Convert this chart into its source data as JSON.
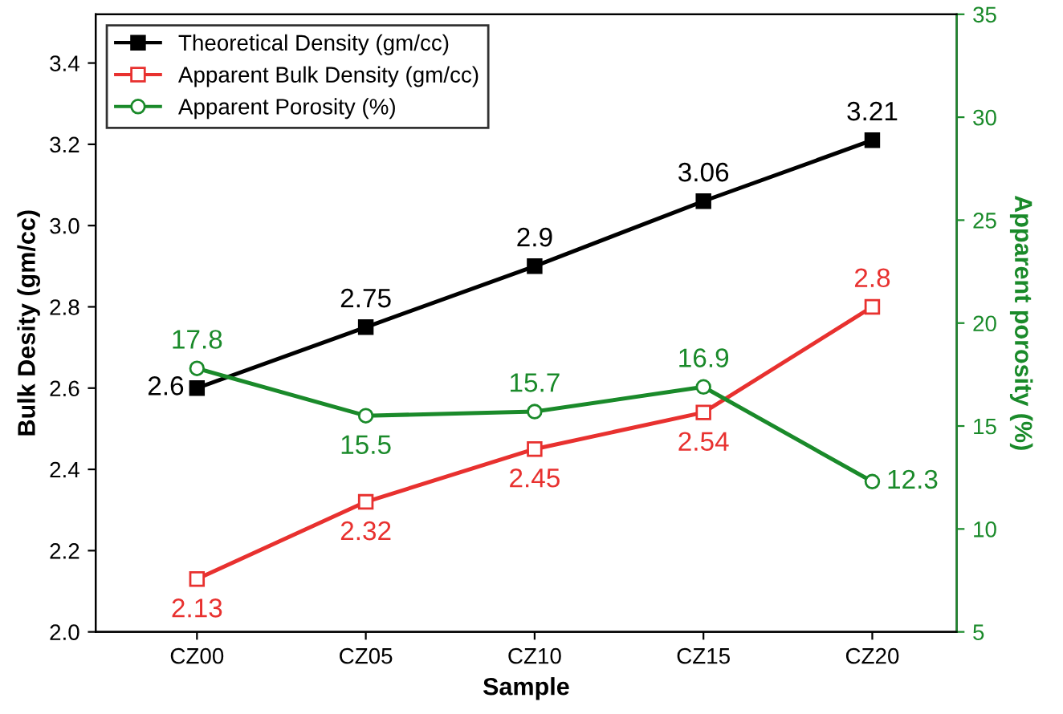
{
  "chart_data": {
    "type": "line",
    "xlabel": "Sample",
    "ylabel": "Bulk Desity (gm/cc)",
    "y2label": "Apparent porosity (%)",
    "categories": [
      "CZ00",
      "CZ05",
      "CZ10",
      "CZ15",
      "CZ20"
    ],
    "series": [
      {
        "name": "Theoretical Density (gm/cc)",
        "color": "#000000",
        "marker": "square",
        "values": [
          2.6,
          2.75,
          2.9,
          3.06,
          3.21
        ]
      },
      {
        "name": "Apparent Bulk Density (gm/cc)",
        "color": "#e8312f",
        "marker": "square",
        "values": [
          2.13,
          2.32,
          2.45,
          2.54,
          2.8
        ]
      },
      {
        "name": "Apparent Porosity (%)",
        "color": "#1a8a2a",
        "marker": "circle",
        "axis": "y2",
        "values": [
          17.8,
          15.5,
          15.7,
          16.9,
          12.3
        ]
      }
    ],
    "ylim": [
      2.0,
      3.52
    ],
    "yticks": [
      {
        "value": 2.0,
        "label": "2.0"
      },
      2.2,
      2.4,
      2.6,
      2.8,
      {
        "value": 3.0,
        "label": "3.0"
      },
      3.2,
      3.4
    ],
    "y2lim": [
      5,
      35
    ],
    "y2ticks": [
      5,
      10,
      15,
      20,
      25,
      30,
      35
    ],
    "data_labels": true,
    "legend": "top left",
    "grid": false
  }
}
